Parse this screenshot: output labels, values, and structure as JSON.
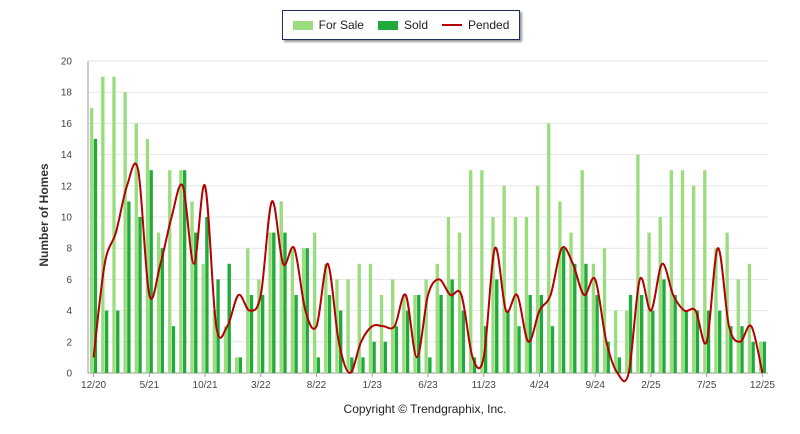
{
  "legend": {
    "for_sale": "For Sale",
    "sold": "Sold",
    "pended": "Pended"
  },
  "copyright": "Copyright © Trendgraphix, Inc.",
  "colors": {
    "for_sale": "#9bdc7f",
    "sold": "#1faa3a",
    "pended": "#b30000",
    "grid": "#e6e6e6"
  },
  "chart_data": {
    "type": "bar",
    "ylabel": "Number of Homes",
    "ylim": [
      0,
      20
    ],
    "yticks": [
      0,
      2,
      4,
      6,
      8,
      10,
      12,
      14,
      16,
      18,
      20
    ],
    "grid": true,
    "legend_position": "top-center",
    "x_tick_labels": [
      {
        "index": 0,
        "label": "12/20"
      },
      {
        "index": 5,
        "label": "5/21"
      },
      {
        "index": 10,
        "label": "10/21"
      },
      {
        "index": 15,
        "label": "3/22"
      },
      {
        "index": 20,
        "label": "8/22"
      },
      {
        "index": 25,
        "label": "1/23"
      },
      {
        "index": 30,
        "label": "6/23"
      },
      {
        "index": 35,
        "label": "11/23"
      },
      {
        "index": 40,
        "label": "4/24"
      },
      {
        "index": 45,
        "label": "9/24"
      },
      {
        "index": 50,
        "label": "2/25"
      },
      {
        "index": 55,
        "label": "7/25"
      },
      {
        "index": 60,
        "label": "12/25"
      }
    ],
    "categories": [
      "12/20",
      "1/21",
      "2/21",
      "3/21",
      "4/21",
      "5/21",
      "6/21",
      "7/21",
      "8/21",
      "9/21",
      "10/21",
      "11/21",
      "12/21",
      "1/22",
      "2/22",
      "3/22",
      "4/22",
      "5/22",
      "6/22",
      "7/22",
      "8/22",
      "9/22",
      "10/22",
      "11/22",
      "12/22",
      "1/23",
      "2/23",
      "3/23",
      "4/23",
      "5/23",
      "6/23",
      "7/23",
      "8/23",
      "9/23",
      "10/23",
      "11/23",
      "12/23",
      "1/24",
      "2/24",
      "3/24",
      "4/24",
      "5/24",
      "6/24",
      "7/24",
      "8/24",
      "9/24",
      "10/24",
      "11/24",
      "12/24",
      "1/25",
      "2/25",
      "3/25",
      "4/25",
      "5/25",
      "6/25",
      "7/25",
      "8/25",
      "9/25",
      "10/25",
      "11/25",
      "12/25"
    ],
    "series": [
      {
        "name": "For Sale",
        "values": [
          17,
          19,
          19,
          18,
          16,
          15,
          9,
          13,
          13,
          11,
          7,
          4,
          3,
          1,
          8,
          6,
          9,
          11,
          8,
          8,
          9,
          7,
          6,
          6,
          7,
          7,
          5,
          6,
          5,
          5,
          6,
          7,
          10,
          9,
          13,
          13,
          10,
          12,
          10,
          10,
          12,
          16,
          11,
          9,
          13,
          7,
          8,
          4,
          4,
          14,
          9,
          10,
          13,
          13,
          12,
          13,
          8,
          9,
          6,
          7,
          2
        ]
      },
      {
        "name": "Sold",
        "values": [
          15,
          4,
          4,
          11,
          10,
          13,
          8,
          3,
          13,
          9,
          10,
          6,
          7,
          1,
          5,
          5,
          9,
          9,
          5,
          8,
          1,
          5,
          4,
          1,
          1,
          2,
          2,
          3,
          4,
          5,
          1,
          5,
          6,
          4,
          1,
          3,
          6,
          4,
          3,
          5,
          5,
          3,
          8,
          7,
          7,
          5,
          2,
          1,
          5,
          5,
          4,
          6,
          5,
          4,
          4,
          4,
          4,
          3,
          3,
          2,
          2
        ]
      },
      {
        "name": "Pended",
        "values": [
          1,
          7,
          9,
          12,
          13,
          5,
          7,
          10,
          12,
          7,
          12,
          3,
          3,
          5,
          4,
          5,
          11,
          7,
          8,
          4,
          3,
          7,
          2,
          0,
          2,
          3,
          3,
          3,
          5,
          1,
          5,
          6,
          5,
          5,
          1,
          1,
          8,
          4,
          5,
          2,
          4,
          5,
          8,
          7,
          5,
          6,
          2,
          0,
          0,
          6,
          4,
          7,
          5,
          4,
          4,
          2,
          8,
          3,
          2,
          3,
          0
        ]
      }
    ]
  }
}
